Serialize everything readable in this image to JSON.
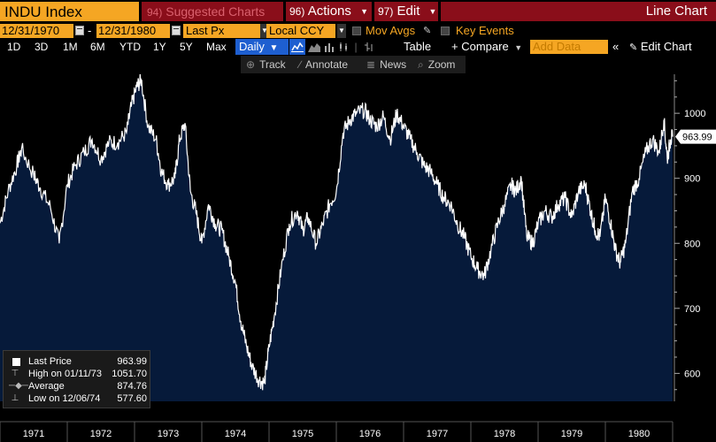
{
  "header": {
    "ticker": "INDU Index",
    "suggested_num": "94)",
    "suggested_label": "Suggested Charts",
    "actions_num": "96)",
    "actions_label": "Actions",
    "edit_num": "97)",
    "edit_label": "Edit",
    "chart_type": "Line Chart"
  },
  "controls": {
    "start_date": "12/31/1970",
    "end_date": "12/31/1980",
    "dash": "-",
    "field": "Last Px",
    "currency": "Local CCY",
    "mov_avgs": "Mov Avgs",
    "key_events": "Key Events"
  },
  "periods": [
    "1D",
    "3D",
    "1M",
    "6M",
    "YTD",
    "1Y",
    "5Y",
    "Max"
  ],
  "frequency": "Daily",
  "toolbar": {
    "table": "Table",
    "compare": "+ Compare",
    "add_data_placeholder": "Add Data",
    "edit_chart": "Edit Chart",
    "track": "Track",
    "annotate": "Annotate",
    "news": "News",
    "zoom": "Zoom"
  },
  "legend": {
    "last_price_label": "Last Price",
    "last_price_value": "963.99",
    "high_label": "High on 01/11/73",
    "high_value": "1051.70",
    "average_label": "Average",
    "average_value": "874.76",
    "low_label": "Low on 12/06/74",
    "low_value": "577.60"
  },
  "colors": {
    "area_fill": "#061a3a",
    "line": "#ffffff",
    "orange": "#f5a623",
    "red": "#8a0e1a",
    "blue": "#1e5fd0"
  },
  "chart_data": {
    "type": "area",
    "title": "",
    "xlabel": "",
    "ylabel": "",
    "xlim": [
      1971.0,
      1981.0
    ],
    "ylim": [
      557,
      1060
    ],
    "x_tick_labels": [
      "1971",
      "1972",
      "1973",
      "1974",
      "1975",
      "1976",
      "1977",
      "1978",
      "1979",
      "1980"
    ],
    "y_ticks": [
      600,
      700,
      800,
      900,
      1000
    ],
    "last_value_label": "963.99",
    "series": [
      {
        "x": [
          1971.0,
          1971.12,
          1971.25,
          1971.32,
          1971.5,
          1971.6,
          1971.75,
          1971.88,
          1972.0,
          1972.12,
          1972.25,
          1972.37,
          1972.5,
          1972.62,
          1972.75,
          1972.88,
          1972.95,
          1973.03,
          1973.1,
          1973.2,
          1973.32,
          1973.4,
          1973.5,
          1973.6,
          1973.67,
          1973.75,
          1973.83,
          1973.92,
          1974.0,
          1974.1,
          1974.2,
          1974.3,
          1974.4,
          1974.5,
          1974.58,
          1974.67,
          1974.75,
          1974.85,
          1974.93,
          1975.0,
          1975.08,
          1975.18,
          1975.3,
          1975.42,
          1975.5,
          1975.58,
          1975.7,
          1975.8,
          1975.9,
          1976.0,
          1976.1,
          1976.2,
          1976.3,
          1976.42,
          1976.5,
          1976.6,
          1976.7,
          1976.8,
          1976.9,
          1977.0,
          1977.1,
          1977.2,
          1977.3,
          1977.4,
          1977.5,
          1977.6,
          1977.7,
          1977.8,
          1977.9,
          1978.0,
          1978.1,
          1978.2,
          1978.3,
          1978.4,
          1978.5,
          1978.6,
          1978.67,
          1978.75,
          1978.83,
          1978.92,
          1979.0,
          1979.1,
          1979.2,
          1979.3,
          1979.4,
          1979.5,
          1979.6,
          1979.7,
          1979.78,
          1979.85,
          1979.92,
          1980.0,
          1980.08,
          1980.15,
          1980.22,
          1980.3,
          1980.4,
          1980.5,
          1980.6,
          1980.7,
          1980.8,
          1980.87,
          1980.92,
          1980.97,
          1981.0
        ],
        "y": [
          831,
          880,
          920,
          945,
          905,
          885,
          855,
          800,
          890,
          920,
          940,
          960,
          930,
          955,
          955,
          970,
          1010,
          1040,
          1051.7,
          980,
          960,
          910,
          890,
          900,
          960,
          985,
          880,
          845,
          800,
          860,
          830,
          820,
          780,
          740,
          680,
          640,
          610,
          590,
          585,
          640,
          690,
          760,
          830,
          850,
          820,
          840,
          800,
          830,
          860,
          880,
          970,
          990,
          1000,
          1005,
          990,
          980,
          995,
          960,
          1000,
          980,
          960,
          940,
          920,
          910,
          890,
          870,
          860,
          830,
          810,
          780,
          760,
          750,
          790,
          830,
          860,
          890,
          880,
          900,
          810,
          800,
          830,
          850,
          840,
          860,
          870,
          840,
          880,
          890,
          850,
          820,
          810,
          870,
          830,
          790,
          770,
          800,
          880,
          900,
          940,
          960,
          940,
          990,
          930,
          960,
          963.99
        ]
      }
    ]
  }
}
